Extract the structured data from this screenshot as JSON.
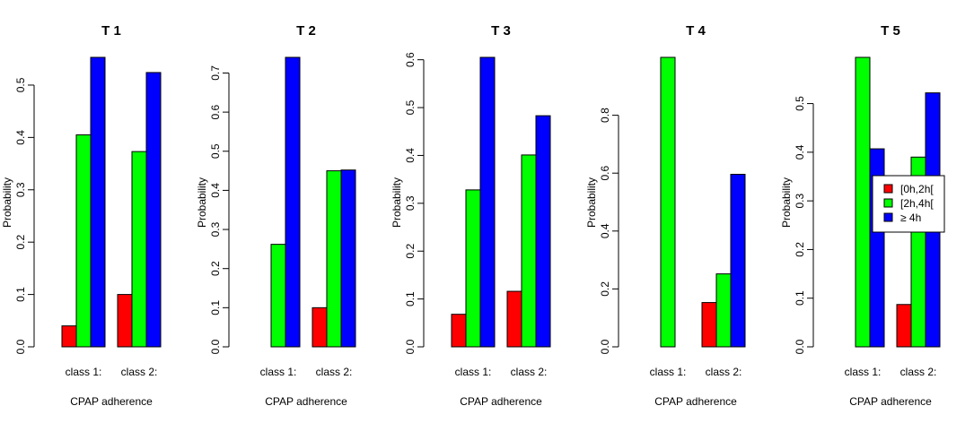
{
  "chart_data": [
    {
      "type": "bar",
      "title": "T 1",
      "xlabel": "CPAP adherence",
      "ylabel": "Probability",
      "categories": [
        "class 1:",
        "class 2:"
      ],
      "yticks": [
        0.0,
        0.1,
        0.2,
        0.3,
        0.4,
        0.5
      ],
      "ylim": [
        0,
        0.553
      ],
      "series": [
        {
          "name": "[0h,2h[",
          "color": "#ff0000",
          "values": [
            0.04,
            0.1
          ]
        },
        {
          "name": "[2h,4h[",
          "color": "#00ff00",
          "values": [
            0.405,
            0.373
          ]
        },
        {
          "name": "≥ 4h",
          "color": "#0000ff",
          "values": [
            0.553,
            0.524
          ]
        }
      ]
    },
    {
      "type": "bar",
      "title": "T 2",
      "xlabel": "CPAP adherence",
      "ylabel": "Probability",
      "categories": [
        "class 1:",
        "class 2:"
      ],
      "yticks": [
        0.0,
        0.1,
        0.2,
        0.3,
        0.4,
        0.5,
        0.6,
        0.7
      ],
      "ylim": [
        0,
        0.74
      ],
      "series": [
        {
          "name": "[0h,2h[",
          "color": "#ff0000",
          "values": [
            0.0,
            0.1
          ]
        },
        {
          "name": "[2h,4h[",
          "color": "#00ff00",
          "values": [
            0.262,
            0.45
          ]
        },
        {
          "name": "≥ 4h",
          "color": "#0000ff",
          "values": [
            0.74,
            0.452
          ]
        }
      ]
    },
    {
      "type": "bar",
      "title": "T 3",
      "xlabel": "CPAP adherence",
      "ylabel": "Probability",
      "categories": [
        "class 1:",
        "class 2:"
      ],
      "yticks": [
        0.0,
        0.1,
        0.2,
        0.3,
        0.4,
        0.5,
        0.6
      ],
      "ylim": [
        0,
        0.605
      ],
      "series": [
        {
          "name": "[0h,2h[",
          "color": "#ff0000",
          "values": [
            0.068,
            0.116
          ]
        },
        {
          "name": "[2h,4h[",
          "color": "#00ff00",
          "values": [
            0.328,
            0.401
          ]
        },
        {
          "name": "≥ 4h",
          "color": "#0000ff",
          "values": [
            0.605,
            0.483
          ]
        }
      ]
    },
    {
      "type": "bar",
      "title": "T 4",
      "xlabel": "CPAP adherence",
      "ylabel": "Probability",
      "categories": [
        "class 1:",
        "class 2:"
      ],
      "yticks": [
        0.0,
        0.2,
        0.4,
        0.6,
        0.8
      ],
      "ylim": [
        0,
        1.0
      ],
      "series": [
        {
          "name": "[0h,2h[",
          "color": "#ff0000",
          "values": [
            0.0,
            0.153
          ]
        },
        {
          "name": "[2h,4h[",
          "color": "#00ff00",
          "values": [
            1.0,
            0.252
          ]
        },
        {
          "name": "≥ 4h",
          "color": "#0000ff",
          "values": [
            0.0,
            0.596
          ]
        }
      ]
    },
    {
      "type": "bar",
      "title": "T 5",
      "xlabel": "CPAP adherence",
      "ylabel": "Probability",
      "categories": [
        "class 1:",
        "class 2:"
      ],
      "yticks": [
        0.0,
        0.1,
        0.2,
        0.3,
        0.4,
        0.5
      ],
      "ylim": [
        0,
        0.595
      ],
      "legend": "right",
      "series": [
        {
          "name": "[0h,2h[",
          "color": "#ff0000",
          "values": [
            0.0,
            0.087
          ]
        },
        {
          "name": "[2h,4h[",
          "color": "#00ff00",
          "values": [
            0.595,
            0.39
          ]
        },
        {
          "name": "≥ 4h",
          "color": "#0000ff",
          "values": [
            0.407,
            0.522
          ]
        }
      ]
    }
  ]
}
